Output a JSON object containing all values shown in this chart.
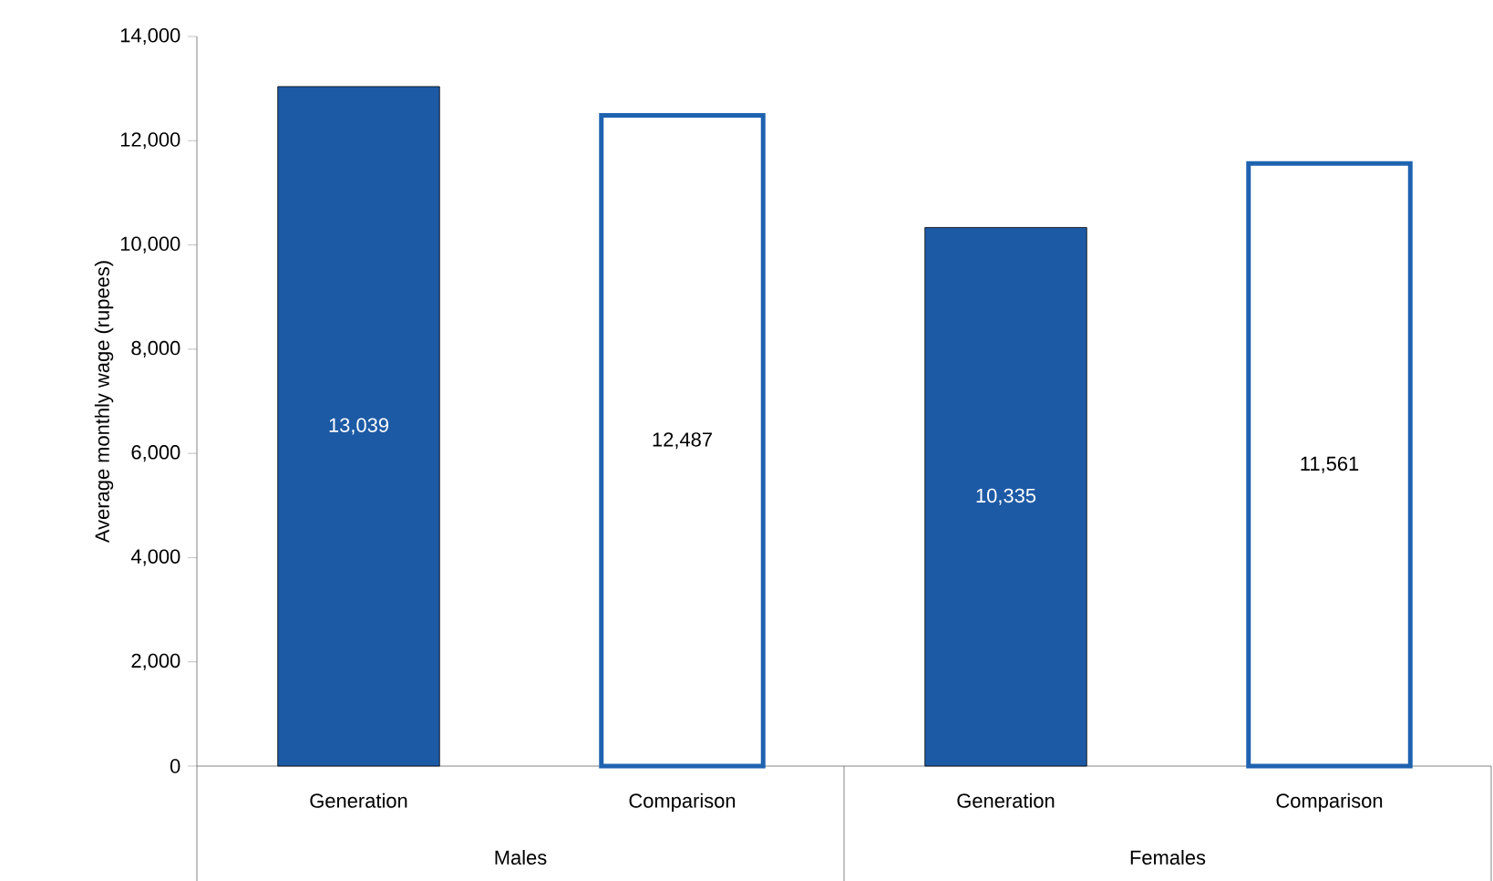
{
  "chart_data": {
    "type": "bar",
    "ylabel": "Average monthly wage (rupees)",
    "categories": [
      "Generation",
      "Comparison",
      "Generation",
      "Comparison"
    ],
    "series": [
      {
        "color": "#1d5aa5",
        "values": [
          13039,
          null,
          10335,
          null
        ],
        "value_labels": [
          "13,039",
          null,
          "10,335",
          null
        ]
      },
      {
        "color": "#1f63b0",
        "values": [
          null,
          12487,
          null,
          11561
        ],
        "value_labels": [
          null,
          "12,487",
          null,
          "11,561"
        ]
      }
    ],
    "annotations": [
      "Males",
      "Females"
    ],
    "ylim": [
      0,
      14000
    ],
    "yticks": [
      0,
      {
        "value": 2000,
        "label": "2,000"
      },
      {
        "value": 4000,
        "label": "4,000"
      },
      {
        "value": 6000,
        "label": "6,000"
      },
      {
        "value": 8000,
        "label": "8,000"
      },
      {
        "value": 10000,
        "label": "10,000"
      },
      {
        "value": 12000,
        "label": "12,000"
      },
      {
        "value": 14000,
        "label": "14,000"
      }
    ],
    "grid": false
  }
}
